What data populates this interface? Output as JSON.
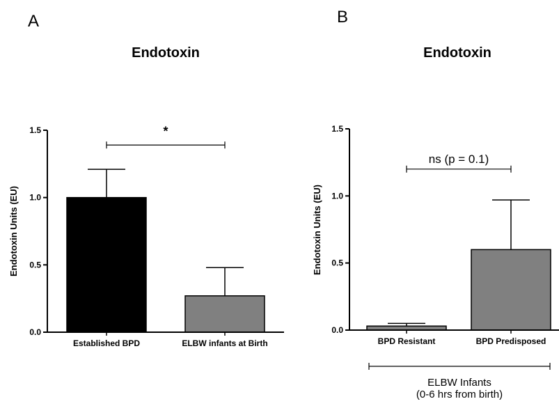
{
  "colors": {
    "black": "#000000",
    "gray": "#808080",
    "axis": "#000000"
  },
  "chart_data": [
    {
      "type": "bar",
      "panel_label": "A",
      "title": "Endotoxin",
      "ylabel": "Endotoxin Units (EU)",
      "xlabel": "",
      "ylim": [
        0,
        1.5
      ],
      "yticks": [
        "0.0",
        "0.5",
        "1.0",
        "1.5"
      ],
      "categories": [
        "Established BPD",
        "ELBW infants at Birth"
      ],
      "values": [
        1.0,
        0.27
      ],
      "errors": [
        0.21,
        0.21
      ],
      "bar_colors": [
        "#000000",
        "#808080"
      ],
      "significance": {
        "label": "*",
        "between": [
          0,
          1
        ],
        "y": 1.39
      },
      "group_label": []
    },
    {
      "type": "bar",
      "panel_label": "B",
      "title": "Endotoxin",
      "ylabel": "Endotoxin Units (EU)",
      "xlabel": "",
      "ylim": [
        0,
        1.5
      ],
      "yticks": [
        "0.0",
        "0.5",
        "1.0",
        "1.5"
      ],
      "categories": [
        "BPD Resistant",
        "BPD Predisposed"
      ],
      "values": [
        0.03,
        0.6
      ],
      "errors": [
        0.02,
        0.37
      ],
      "bar_colors": [
        "#808080",
        "#808080"
      ],
      "significance": {
        "label": "ns (p = 0.1)",
        "between": [
          0,
          1
        ],
        "y": 1.2
      },
      "group_label": [
        "ELBW Infants",
        "(0-6 hrs from birth)"
      ]
    }
  ]
}
